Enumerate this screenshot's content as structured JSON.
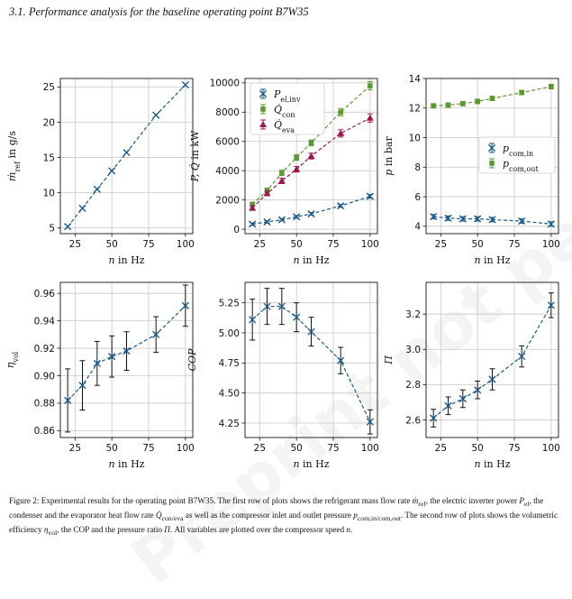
{
  "heading": "3.1.  Performance analysis for the baseline operating point B7W35",
  "watermark": "Preprint not peer reviewed",
  "caption": {
    "p1": "Figure 2: Experimental results for the operating point B7W35. The first row of plots shows the refrigerant mass flow rate ",
    "m_sym": "ṁ",
    "m_sub": "ref",
    "p2": ", the electric inverter power ",
    "p_sym": "P",
    "p_sub": "el",
    "p3": ", the condenser and the evaporator heat flow rate ",
    "q_sym": "Q̇",
    "q_sub": "con/eva",
    "p4": " as well as the compressor inlet and outlet pressure ",
    "pc_sym": "p",
    "pc_sub": "com,in/com,out",
    "p5": ". The second row of plots shows the volumetric efficiency ",
    "eta_sym": "η",
    "eta_sub": "vol",
    "p6": ", the COP and the pressure ratio ",
    "pi_sym": "Π",
    "p7": ". All variables are plotted over the compressor speed ",
    "n_sym": "n",
    "p8": "."
  },
  "colors": {
    "blue": "#1a5a8a",
    "green": "#5a9a30",
    "red": "#a0174a",
    "grid": "#c8c8c8",
    "black": "#111111"
  },
  "chart_data": [
    {
      "id": "mref",
      "type": "line",
      "xlabel": "n in Hz",
      "ylabel": "ṁref in g/s",
      "xlim": [
        15,
        105
      ],
      "ylim": [
        4.2,
        26.2
      ],
      "xticks": [
        "25",
        "50",
        "75",
        "100"
      ],
      "xtick_values": [
        25,
        50,
        75,
        100
      ],
      "yticks": [
        "5",
        "10",
        "15",
        "20",
        "25"
      ],
      "ytick_values": [
        5,
        10,
        15,
        20,
        25
      ],
      "grid": true,
      "series": [
        {
          "x": [
            20,
            30,
            40,
            50,
            60,
            80,
            100
          ],
          "y": [
            5.2,
            7.8,
            10.5,
            13.1,
            15.7,
            21.0,
            25.3
          ],
          "err": [
            0,
            0,
            0,
            0,
            0,
            0,
            0
          ],
          "color": "blue",
          "marker": "x"
        }
      ]
    },
    {
      "id": "power",
      "type": "line",
      "xlabel": "n in Hz",
      "ylabel": "P, Q̇ in kW",
      "xlim": [
        15,
        105
      ],
      "ylim": [
        -300,
        10300
      ],
      "xticks": [
        "25",
        "50",
        "75",
        "100"
      ],
      "xtick_values": [
        25,
        50,
        75,
        100
      ],
      "yticks": [
        "0",
        "2000",
        "4000",
        "6000",
        "8000",
        "10000"
      ],
      "ytick_values": [
        0,
        2000,
        4000,
        6000,
        8000,
        10000
      ],
      "grid": true,
      "legend": "top-left",
      "series": [
        {
          "name": "Pel,inv",
          "name_main": "P",
          "name_sub": "el,inv",
          "x": [
            20,
            30,
            40,
            50,
            60,
            80,
            100
          ],
          "y": [
            350,
            500,
            650,
            850,
            1050,
            1600,
            2250
          ],
          "err": [
            80,
            80,
            80,
            90,
            90,
            100,
            120
          ],
          "color": "blue",
          "marker": "x"
        },
        {
          "name": "Q̇con",
          "name_main": "Q̇",
          "name_sub": "con",
          "x": [
            20,
            30,
            40,
            50,
            60,
            80,
            100
          ],
          "y": [
            1700,
            2650,
            3850,
            4900,
            5900,
            8000,
            9800
          ],
          "err": [
            150,
            160,
            180,
            190,
            200,
            250,
            280
          ],
          "color": "green",
          "marker": "square"
        },
        {
          "name": "Q̇eva",
          "name_main": "Q̇",
          "name_sub": "eva",
          "x": [
            20,
            30,
            40,
            50,
            60,
            80,
            100
          ],
          "y": [
            1450,
            2450,
            3300,
            4100,
            5000,
            6550,
            7600
          ],
          "err": [
            150,
            160,
            180,
            190,
            200,
            250,
            280
          ],
          "color": "red",
          "marker": "triangle"
        }
      ]
    },
    {
      "id": "pressure",
      "type": "line",
      "xlabel": "n in Hz",
      "ylabel": "p in bar",
      "xlim": [
        15,
        105
      ],
      "ylim": [
        3.5,
        14.0
      ],
      "xticks": [
        "25",
        "50",
        "75",
        "100"
      ],
      "xtick_values": [
        25,
        50,
        75,
        100
      ],
      "yticks": [
        "4",
        "6",
        "8",
        "10",
        "12",
        "14"
      ],
      "ytick_values": [
        4,
        6,
        8,
        10,
        12,
        14
      ],
      "grid": true,
      "legend": "center-right",
      "series": [
        {
          "name": "pcom,in",
          "name_main": "p",
          "name_sub": "com,in",
          "x": [
            20,
            30,
            40,
            50,
            60,
            80,
            100
          ],
          "y": [
            4.65,
            4.55,
            4.5,
            4.5,
            4.45,
            4.35,
            4.15
          ],
          "err": [
            0.15,
            0.15,
            0.15,
            0.15,
            0.15,
            0.15,
            0.15
          ],
          "color": "blue",
          "marker": "x"
        },
        {
          "name": "pcom,out",
          "name_main": "p",
          "name_sub": "com,out",
          "x": [
            20,
            30,
            40,
            50,
            60,
            80,
            100
          ],
          "y": [
            12.15,
            12.2,
            12.3,
            12.45,
            12.65,
            13.05,
            13.45
          ],
          "err": [
            0.15,
            0.15,
            0.15,
            0.15,
            0.15,
            0.15,
            0.15
          ],
          "color": "green",
          "marker": "square"
        }
      ]
    },
    {
      "id": "eta",
      "type": "line",
      "xlabel": "n in Hz",
      "ylabel": "ηvol",
      "xlim": [
        15,
        105
      ],
      "ylim": [
        0.855,
        0.968
      ],
      "xticks": [
        "25",
        "50",
        "75",
        "100"
      ],
      "xtick_values": [
        25,
        50,
        75,
        100
      ],
      "yticks": [
        "0.86",
        "0.88",
        "0.90",
        "0.92",
        "0.94",
        "0.96"
      ],
      "ytick_values": [
        0.86,
        0.88,
        0.9,
        0.92,
        0.94,
        0.96
      ],
      "grid": true,
      "series": [
        {
          "x": [
            20,
            30,
            40,
            50,
            60,
            80,
            100
          ],
          "y": [
            0.882,
            0.893,
            0.909,
            0.914,
            0.918,
            0.93,
            0.951
          ],
          "err": [
            0.023,
            0.018,
            0.016,
            0.015,
            0.014,
            0.013,
            0.015
          ],
          "color": "blue",
          "marker": "x"
        }
      ]
    },
    {
      "id": "cop",
      "type": "line",
      "xlabel": "n in Hz",
      "ylabel": "COP",
      "xlim": [
        15,
        105
      ],
      "ylim": [
        4.13,
        5.42
      ],
      "xticks": [
        "25",
        "50",
        "75",
        "100"
      ],
      "xtick_values": [
        25,
        50,
        75,
        100
      ],
      "yticks": [
        "4.25",
        "4.50",
        "4.75",
        "5.00",
        "5.25"
      ],
      "ytick_values": [
        4.25,
        4.5,
        4.75,
        5.0,
        5.25
      ],
      "grid": true,
      "series": [
        {
          "x": [
            20,
            30,
            40,
            50,
            60,
            80,
            100
          ],
          "y": [
            5.11,
            5.22,
            5.22,
            5.13,
            5.01,
            4.77,
            4.26
          ],
          "err": [
            0.17,
            0.15,
            0.15,
            0.12,
            0.12,
            0.11,
            0.1
          ],
          "color": "blue",
          "marker": "x"
        }
      ]
    },
    {
      "id": "pi",
      "type": "line",
      "xlabel": "n in Hz",
      "ylabel": "Π",
      "xlim": [
        15,
        105
      ],
      "ylim": [
        2.5,
        3.38
      ],
      "xticks": [
        "25",
        "50",
        "75",
        "100"
      ],
      "xtick_values": [
        25,
        50,
        75,
        100
      ],
      "yticks": [
        "2.6",
        "2.8",
        "3.0",
        "3.2"
      ],
      "ytick_values": [
        2.6,
        2.8,
        3.0,
        3.2
      ],
      "grid": true,
      "series": [
        {
          "x": [
            20,
            30,
            40,
            50,
            60,
            80,
            100
          ],
          "y": [
            2.61,
            2.68,
            2.72,
            2.77,
            2.83,
            2.96,
            3.25
          ],
          "err": [
            0.05,
            0.05,
            0.05,
            0.05,
            0.06,
            0.06,
            0.07
          ],
          "color": "blue",
          "marker": "x"
        }
      ]
    }
  ]
}
